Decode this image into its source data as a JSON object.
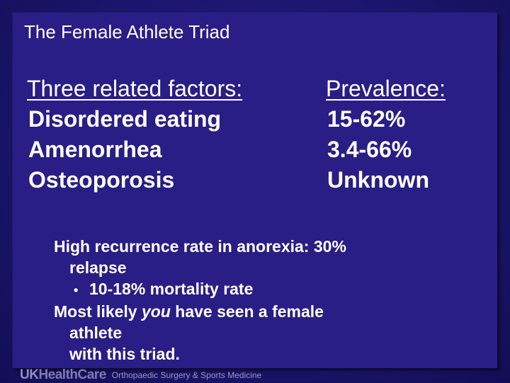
{
  "slide": {
    "title": "The Female Athlete Triad",
    "left_column": {
      "heading": "Three related factors:",
      "items": [
        "Disordered eating",
        "Amenorrhea",
        "Osteoporosis"
      ]
    },
    "right_column": {
      "heading": "Prevalence:",
      "items": [
        "15-62%",
        "3.4-66%",
        "Unknown"
      ]
    },
    "notes": {
      "line1": "High recurrence rate in anorexia: 30%",
      "line1_cont": "relapse",
      "bullet_symbol": "•",
      "bullet_text": "10-18% mortality rate",
      "line3_pre": "Most likely ",
      "line3_em": "you",
      "line3_post": " have seen a female",
      "line3_cont": "athlete",
      "line3_cont2": "with this triad."
    }
  },
  "footer": {
    "logo_uk": "UK",
    "logo_rest": "HealthCare",
    "department": "Orthopaedic Surgery & Sports Medicine"
  },
  "colors": {
    "background": "#16105e",
    "panel": "#291d86",
    "text": "#ffffff",
    "footer_text": "#9896c4"
  }
}
